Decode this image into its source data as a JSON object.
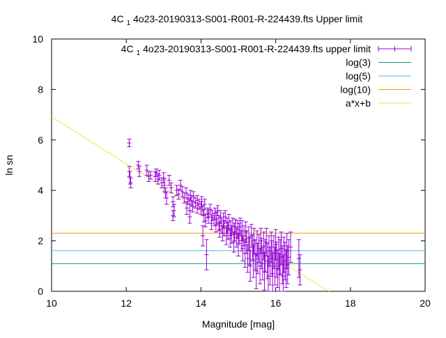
{
  "chart_data": {
    "type": "scatter",
    "title_prefix": "4C",
    "title_subscript": "1",
    "title_suffix": "4o23-20190313-S001-R001-R-224439.fts Upper limit",
    "xlabel": "Magnitude [mag]",
    "ylabel": "ln sn",
    "xlim": [
      10,
      20
    ],
    "ylim": [
      0,
      10
    ],
    "x_ticks": [
      "10",
      "12",
      "14",
      "16",
      "18",
      "20"
    ],
    "y_ticks": [
      "0",
      "2",
      "4",
      "6",
      "8",
      "10"
    ],
    "grid": false,
    "legend_position": "top-right",
    "legend": [
      {
        "prefix": "4C",
        "subscript": "1",
        "suffix": "4o23-20190313-S001-R001-R-224439.fts upper limit",
        "color": "#9400d3",
        "style": "errorbar"
      },
      {
        "label": "log(3)",
        "color": "#009e73",
        "style": "line"
      },
      {
        "label": "log(5)",
        "color": "#56b4e9",
        "style": "line"
      },
      {
        "label": "log(10)",
        "color": "#e69f00",
        "style": "line"
      },
      {
        "label": "a*x+b",
        "color": "#f0e442",
        "style": "line"
      }
    ],
    "hlines": [
      {
        "name": "log(3)",
        "y": 1.0986,
        "color": "#009e73"
      },
      {
        "name": "log(5)",
        "y": 1.6094,
        "color": "#56b4e9"
      },
      {
        "name": "log(10)",
        "y": 2.3026,
        "color": "#e69f00"
      }
    ],
    "fit_line": {
      "name": "a*x+b",
      "x": [
        10,
        17.42
      ],
      "y": [
        6.92,
        0
      ],
      "color": "#f0e442"
    },
    "series": [
      {
        "color": "#9400d3",
        "points": [
          [
            12.08,
            5.88,
            0.15
          ],
          [
            12.08,
            4.75,
            0.2
          ],
          [
            12.1,
            4.5,
            0.25
          ],
          [
            12.12,
            4.3,
            0.2
          ],
          [
            12.32,
            5.0,
            0.15
          ],
          [
            12.35,
            4.75,
            0.2
          ],
          [
            12.55,
            4.8,
            0.2
          ],
          [
            12.6,
            4.55,
            0.2
          ],
          [
            12.65,
            4.6,
            0.15
          ],
          [
            12.78,
            4.55,
            0.2
          ],
          [
            12.8,
            4.7,
            0.15
          ],
          [
            12.85,
            4.45,
            0.2
          ],
          [
            12.88,
            4.6,
            0.2
          ],
          [
            12.95,
            4.3,
            0.2
          ],
          [
            13.0,
            4.5,
            0.2
          ],
          [
            13.02,
            4.2,
            0.25
          ],
          [
            13.05,
            3.9,
            0.2
          ],
          [
            13.08,
            3.7,
            0.25
          ],
          [
            13.15,
            4.4,
            0.2
          ],
          [
            13.2,
            4.1,
            0.2
          ],
          [
            13.25,
            3.55,
            0.2
          ],
          [
            13.25,
            3.0,
            0.2
          ],
          [
            13.28,
            3.2,
            0.25
          ],
          [
            13.35,
            4.0,
            0.2
          ],
          [
            13.4,
            3.85,
            0.2
          ],
          [
            13.45,
            4.2,
            0.2
          ],
          [
            13.5,
            3.95,
            0.2
          ],
          [
            13.55,
            3.7,
            0.2
          ],
          [
            13.6,
            3.9,
            0.2
          ],
          [
            13.62,
            3.3,
            0.25
          ],
          [
            13.65,
            3.65,
            0.2
          ],
          [
            13.7,
            3.45,
            0.25
          ],
          [
            13.7,
            2.95,
            0.25
          ],
          [
            13.72,
            3.8,
            0.2
          ],
          [
            13.75,
            3.6,
            0.2
          ],
          [
            13.78,
            3.35,
            0.2
          ],
          [
            13.8,
            3.75,
            0.2
          ],
          [
            13.85,
            3.5,
            0.2
          ],
          [
            13.9,
            3.3,
            0.2
          ],
          [
            13.9,
            3.6,
            0.2
          ],
          [
            13.95,
            3.45,
            0.2
          ],
          [
            14.0,
            3.3,
            0.25
          ],
          [
            14.02,
            3.55,
            0.2
          ],
          [
            14.05,
            3.2,
            0.2
          ],
          [
            14.05,
            2.2,
            0.4
          ],
          [
            14.08,
            3.0,
            0.25
          ],
          [
            14.1,
            3.45,
            0.2
          ],
          [
            14.12,
            2.8,
            0.25
          ],
          [
            14.15,
            1.45,
            0.6
          ],
          [
            14.18,
            3.1,
            0.2
          ],
          [
            14.2,
            2.95,
            0.25
          ],
          [
            14.25,
            3.25,
            0.2
          ],
          [
            14.28,
            2.7,
            0.25
          ],
          [
            14.3,
            3.0,
            0.2
          ],
          [
            14.35,
            2.85,
            0.25
          ],
          [
            14.38,
            3.1,
            0.2
          ],
          [
            14.4,
            2.6,
            0.25
          ],
          [
            14.42,
            2.9,
            0.25
          ],
          [
            14.45,
            3.2,
            0.2
          ],
          [
            14.48,
            2.7,
            0.3
          ],
          [
            14.5,
            2.45,
            0.3
          ],
          [
            14.52,
            2.95,
            0.25
          ],
          [
            14.55,
            2.6,
            0.3
          ],
          [
            14.58,
            2.3,
            0.3
          ],
          [
            14.6,
            2.8,
            0.3
          ],
          [
            14.62,
            2.5,
            0.3
          ],
          [
            14.65,
            2.95,
            0.25
          ],
          [
            14.68,
            2.2,
            0.35
          ],
          [
            14.7,
            2.6,
            0.3
          ],
          [
            14.72,
            2.4,
            0.35
          ],
          [
            14.75,
            2.75,
            0.3
          ],
          [
            14.78,
            2.1,
            0.35
          ],
          [
            14.8,
            2.5,
            0.3
          ],
          [
            14.82,
            2.25,
            0.35
          ],
          [
            14.85,
            2.6,
            0.3
          ],
          [
            14.88,
            1.95,
            0.4
          ],
          [
            14.9,
            2.35,
            0.35
          ],
          [
            14.92,
            2.55,
            0.3
          ],
          [
            14.95,
            2.15,
            0.4
          ],
          [
            14.98,
            2.45,
            0.35
          ],
          [
            15.0,
            1.85,
            0.45
          ],
          [
            15.02,
            2.3,
            0.4
          ],
          [
            15.05,
            2.55,
            0.35
          ],
          [
            15.08,
            2.0,
            0.4
          ],
          [
            15.1,
            2.4,
            0.4
          ],
          [
            15.12,
            1.7,
            0.5
          ],
          [
            15.15,
            2.2,
            0.4
          ],
          [
            15.18,
            1.5,
            0.55
          ],
          [
            15.2,
            2.35,
            0.4
          ],
          [
            15.22,
            1.95,
            0.45
          ],
          [
            15.25,
            1.3,
            0.55
          ],
          [
            15.28,
            2.1,
            0.45
          ],
          [
            15.3,
            1.6,
            0.55
          ],
          [
            15.32,
            1.0,
            0.6
          ],
          [
            15.35,
            2.2,
            0.45
          ],
          [
            15.38,
            1.75,
            0.5
          ],
          [
            15.4,
            1.2,
            0.65
          ],
          [
            15.42,
            2.0,
            0.5
          ],
          [
            15.45,
            1.45,
            0.6
          ],
          [
            15.48,
            0.8,
            0.7
          ],
          [
            15.5,
            1.9,
            0.5
          ],
          [
            15.52,
            1.3,
            0.6
          ],
          [
            15.55,
            1.7,
            0.55
          ],
          [
            15.58,
            1.0,
            0.7
          ],
          [
            15.6,
            2.0,
            0.5
          ],
          [
            15.62,
            1.5,
            0.6
          ],
          [
            15.65,
            1.1,
            0.65
          ],
          [
            15.68,
            1.8,
            0.55
          ],
          [
            15.7,
            0.8,
            0.75
          ],
          [
            15.72,
            1.4,
            0.65
          ],
          [
            15.75,
            1.95,
            0.55
          ],
          [
            15.78,
            1.2,
            0.7
          ],
          [
            15.8,
            0.6,
            0.8
          ],
          [
            15.82,
            1.6,
            0.6
          ],
          [
            15.85,
            1.0,
            0.75
          ],
          [
            15.88,
            1.75,
            0.6
          ],
          [
            15.9,
            1.3,
            0.7
          ],
          [
            15.92,
            0.7,
            0.8
          ],
          [
            15.95,
            1.55,
            0.65
          ],
          [
            15.98,
            1.0,
            0.75
          ],
          [
            16.0,
            1.85,
            0.6
          ],
          [
            16.02,
            1.25,
            0.7
          ],
          [
            16.05,
            0.9,
            0.75
          ],
          [
            16.08,
            1.5,
            0.65
          ],
          [
            16.1,
            0.7,
            0.8
          ],
          [
            16.12,
            1.35,
            0.7
          ],
          [
            16.15,
            1.7,
            0.65
          ],
          [
            16.18,
            1.05,
            0.75
          ],
          [
            16.2,
            0.6,
            0.8
          ],
          [
            16.22,
            1.45,
            0.7
          ],
          [
            16.25,
            1.2,
            0.75
          ],
          [
            16.28,
            0.9,
            0.75
          ],
          [
            16.3,
            1.6,
            0.7
          ],
          [
            16.32,
            1.05,
            0.75
          ],
          [
            16.35,
            1.35,
            0.7
          ],
          [
            16.4,
            1.75,
            0.6
          ],
          [
            16.62,
            1.3,
            0.75
          ],
          [
            16.65,
            0.85,
            0.6
          ]
        ]
      }
    ]
  }
}
